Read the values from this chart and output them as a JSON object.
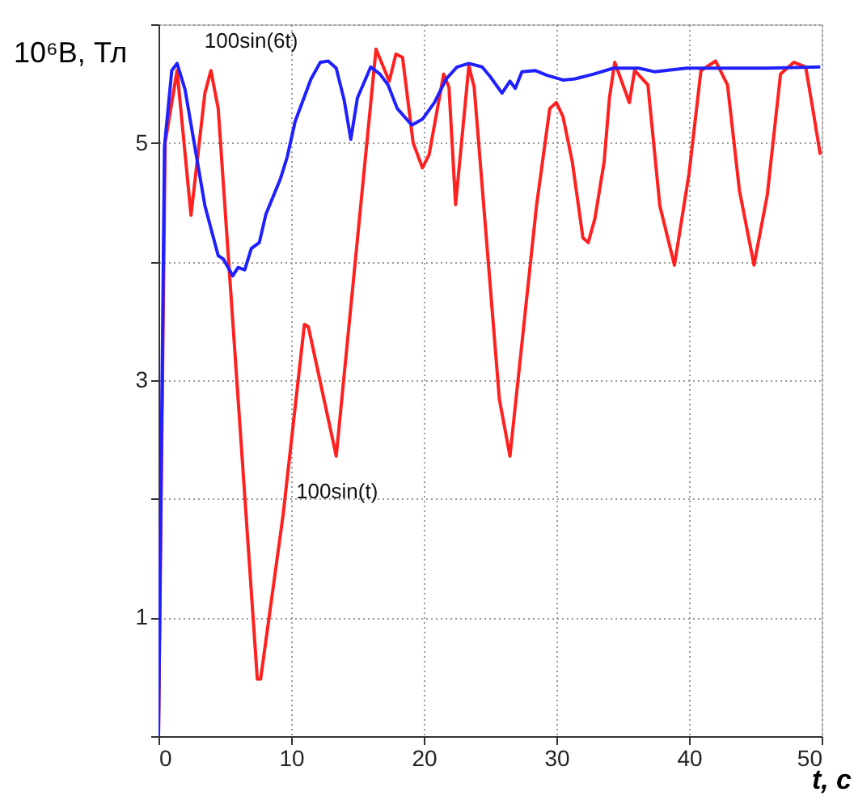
{
  "chart_data": {
    "type": "line",
    "ylabel": "10⁶B, Тл",
    "xlabel": "t, c",
    "xlim": [
      0,
      50
    ],
    "xticks": [
      0,
      10,
      20,
      30,
      40,
      50
    ],
    "ylim": [
      0,
      6
    ],
    "yticks": [
      {
        "value": 0,
        "label": null
      },
      1,
      {
        "value": 2,
        "label": null
      },
      3,
      {
        "value": 4,
        "label": null
      },
      5,
      {
        "value": 6,
        "label": null
      }
    ],
    "grid": true,
    "line_style": "solid",
    "marker": "none",
    "series": [
      {
        "color": "#ff2020",
        "x": [
          0,
          0.5,
          1.4,
          2.45,
          3.5,
          3.95,
          4.5,
          7.45,
          7.7,
          9.4,
          11,
          11.3,
          13.4,
          16.4,
          17.4,
          17.9,
          18.4,
          19.2,
          19.9,
          20.4,
          21.5,
          21.9,
          22.4,
          23.4,
          23.8,
          25.7,
          26.5,
          28.5,
          29.5,
          30,
          30.5,
          31.2,
          32,
          32.4,
          32.9,
          33.6,
          34,
          34.4,
          35.5,
          35.9,
          36.9,
          37.8,
          38.9,
          40,
          40.9,
          42,
          42.9,
          43.8,
          44.9,
          45.9,
          46.9,
          47.9,
          48.8,
          49.4,
          49.9
        ],
        "values": [
          0,
          5.0,
          5.61,
          4.39,
          5.42,
          5.61,
          5.29,
          0.48,
          0.48,
          1.87,
          3.47,
          3.45,
          2.36,
          5.79,
          5.52,
          5.75,
          5.72,
          5.0,
          4.79,
          4.9,
          5.58,
          5.47,
          4.48,
          5.65,
          5.47,
          2.84,
          2.36,
          4.47,
          5.29,
          5.34,
          5.22,
          4.84,
          4.2,
          4.16,
          4.36,
          4.84,
          5.38,
          5.68,
          5.34,
          5.61,
          5.49,
          4.47,
          3.97,
          4.74,
          5.61,
          5.69,
          5.49,
          4.6,
          3.97,
          4.56,
          5.58,
          5.68,
          5.64,
          5.24,
          4.9
        ]
      },
      {
        "color": "#2020ff",
        "x": [
          0,
          0.45,
          1.0,
          1.4,
          2.0,
          3.5,
          4.5,
          4.9,
          5.6,
          6.0,
          6.5,
          7.0,
          7.6,
          8.1,
          9.2,
          9.7,
          10.3,
          11.5,
          12.2,
          12.8,
          13.4,
          14.0,
          14.5,
          15,
          16.0,
          16.7,
          17.3,
          18.0,
          19.1,
          19.9,
          20.8,
          21.7,
          22.5,
          23.4,
          24.4,
          25.0,
          25.9,
          26.5,
          26.9,
          27.4,
          28.4,
          29.3,
          30.5,
          31.4,
          32.8,
          34.3,
          36.2,
          37.4,
          39.8,
          42.1,
          45.9,
          49.9
        ],
        "values": [
          0,
          4.97,
          5.61,
          5.67,
          5.45,
          4.47,
          4.05,
          4.02,
          3.88,
          3.95,
          3.93,
          4.11,
          4.16,
          4.4,
          4.7,
          4.88,
          5.18,
          5.54,
          5.68,
          5.69,
          5.63,
          5.36,
          5.03,
          5.38,
          5.64,
          5.58,
          5.49,
          5.29,
          5.15,
          5.2,
          5.34,
          5.54,
          5.64,
          5.67,
          5.64,
          5.56,
          5.42,
          5.52,
          5.46,
          5.6,
          5.61,
          5.57,
          5.53,
          5.54,
          5.58,
          5.63,
          5.63,
          5.6,
          5.63,
          5.63,
          5.63,
          5.64
        ]
      }
    ],
    "annotations": [
      {
        "text": "100sin(6t)",
        "x": 11.0,
        "y": 5.5
      },
      {
        "text": "100sin(t)",
        "x": 9.4,
        "y": 1.87
      }
    ]
  }
}
